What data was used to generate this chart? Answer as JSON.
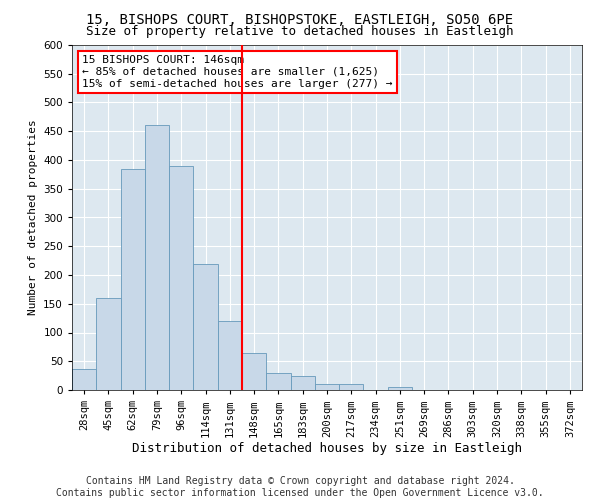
{
  "title1": "15, BISHOPS COURT, BISHOPSTOKE, EASTLEIGH, SO50 6PE",
  "title2": "Size of property relative to detached houses in Eastleigh",
  "xlabel": "Distribution of detached houses by size in Eastleigh",
  "ylabel": "Number of detached properties",
  "categories": [
    "28sqm",
    "45sqm",
    "62sqm",
    "79sqm",
    "96sqm",
    "114sqm",
    "131sqm",
    "148sqm",
    "165sqm",
    "183sqm",
    "200sqm",
    "217sqm",
    "234sqm",
    "251sqm",
    "269sqm",
    "286sqm",
    "303sqm",
    "320sqm",
    "338sqm",
    "355sqm",
    "372sqm"
  ],
  "values": [
    37,
    160,
    385,
    460,
    390,
    220,
    120,
    65,
    30,
    25,
    10,
    10,
    0,
    5,
    0,
    0,
    0,
    0,
    0,
    0,
    0
  ],
  "bar_color": "#c8d8e8",
  "bar_edge_color": "#6699bb",
  "vline_x_idx": 7,
  "vline_color": "red",
  "annotation_text": "15 BISHOPS COURT: 146sqm\n← 85% of detached houses are smaller (1,625)\n15% of semi-detached houses are larger (277) →",
  "annotation_box_color": "white",
  "annotation_box_edge": "red",
  "background_color": "#dde8f0",
  "grid_color": "white",
  "footer1": "Contains HM Land Registry data © Crown copyright and database right 2024.",
  "footer2": "Contains public sector information licensed under the Open Government Licence v3.0.",
  "ylim": [
    0,
    600
  ],
  "yticks": [
    0,
    50,
    100,
    150,
    200,
    250,
    300,
    350,
    400,
    450,
    500,
    550,
    600
  ],
  "title1_fontsize": 10,
  "title2_fontsize": 9,
  "xlabel_fontsize": 9,
  "ylabel_fontsize": 8,
  "tick_fontsize": 7.5,
  "annotation_fontsize": 8,
  "footer_fontsize": 7
}
